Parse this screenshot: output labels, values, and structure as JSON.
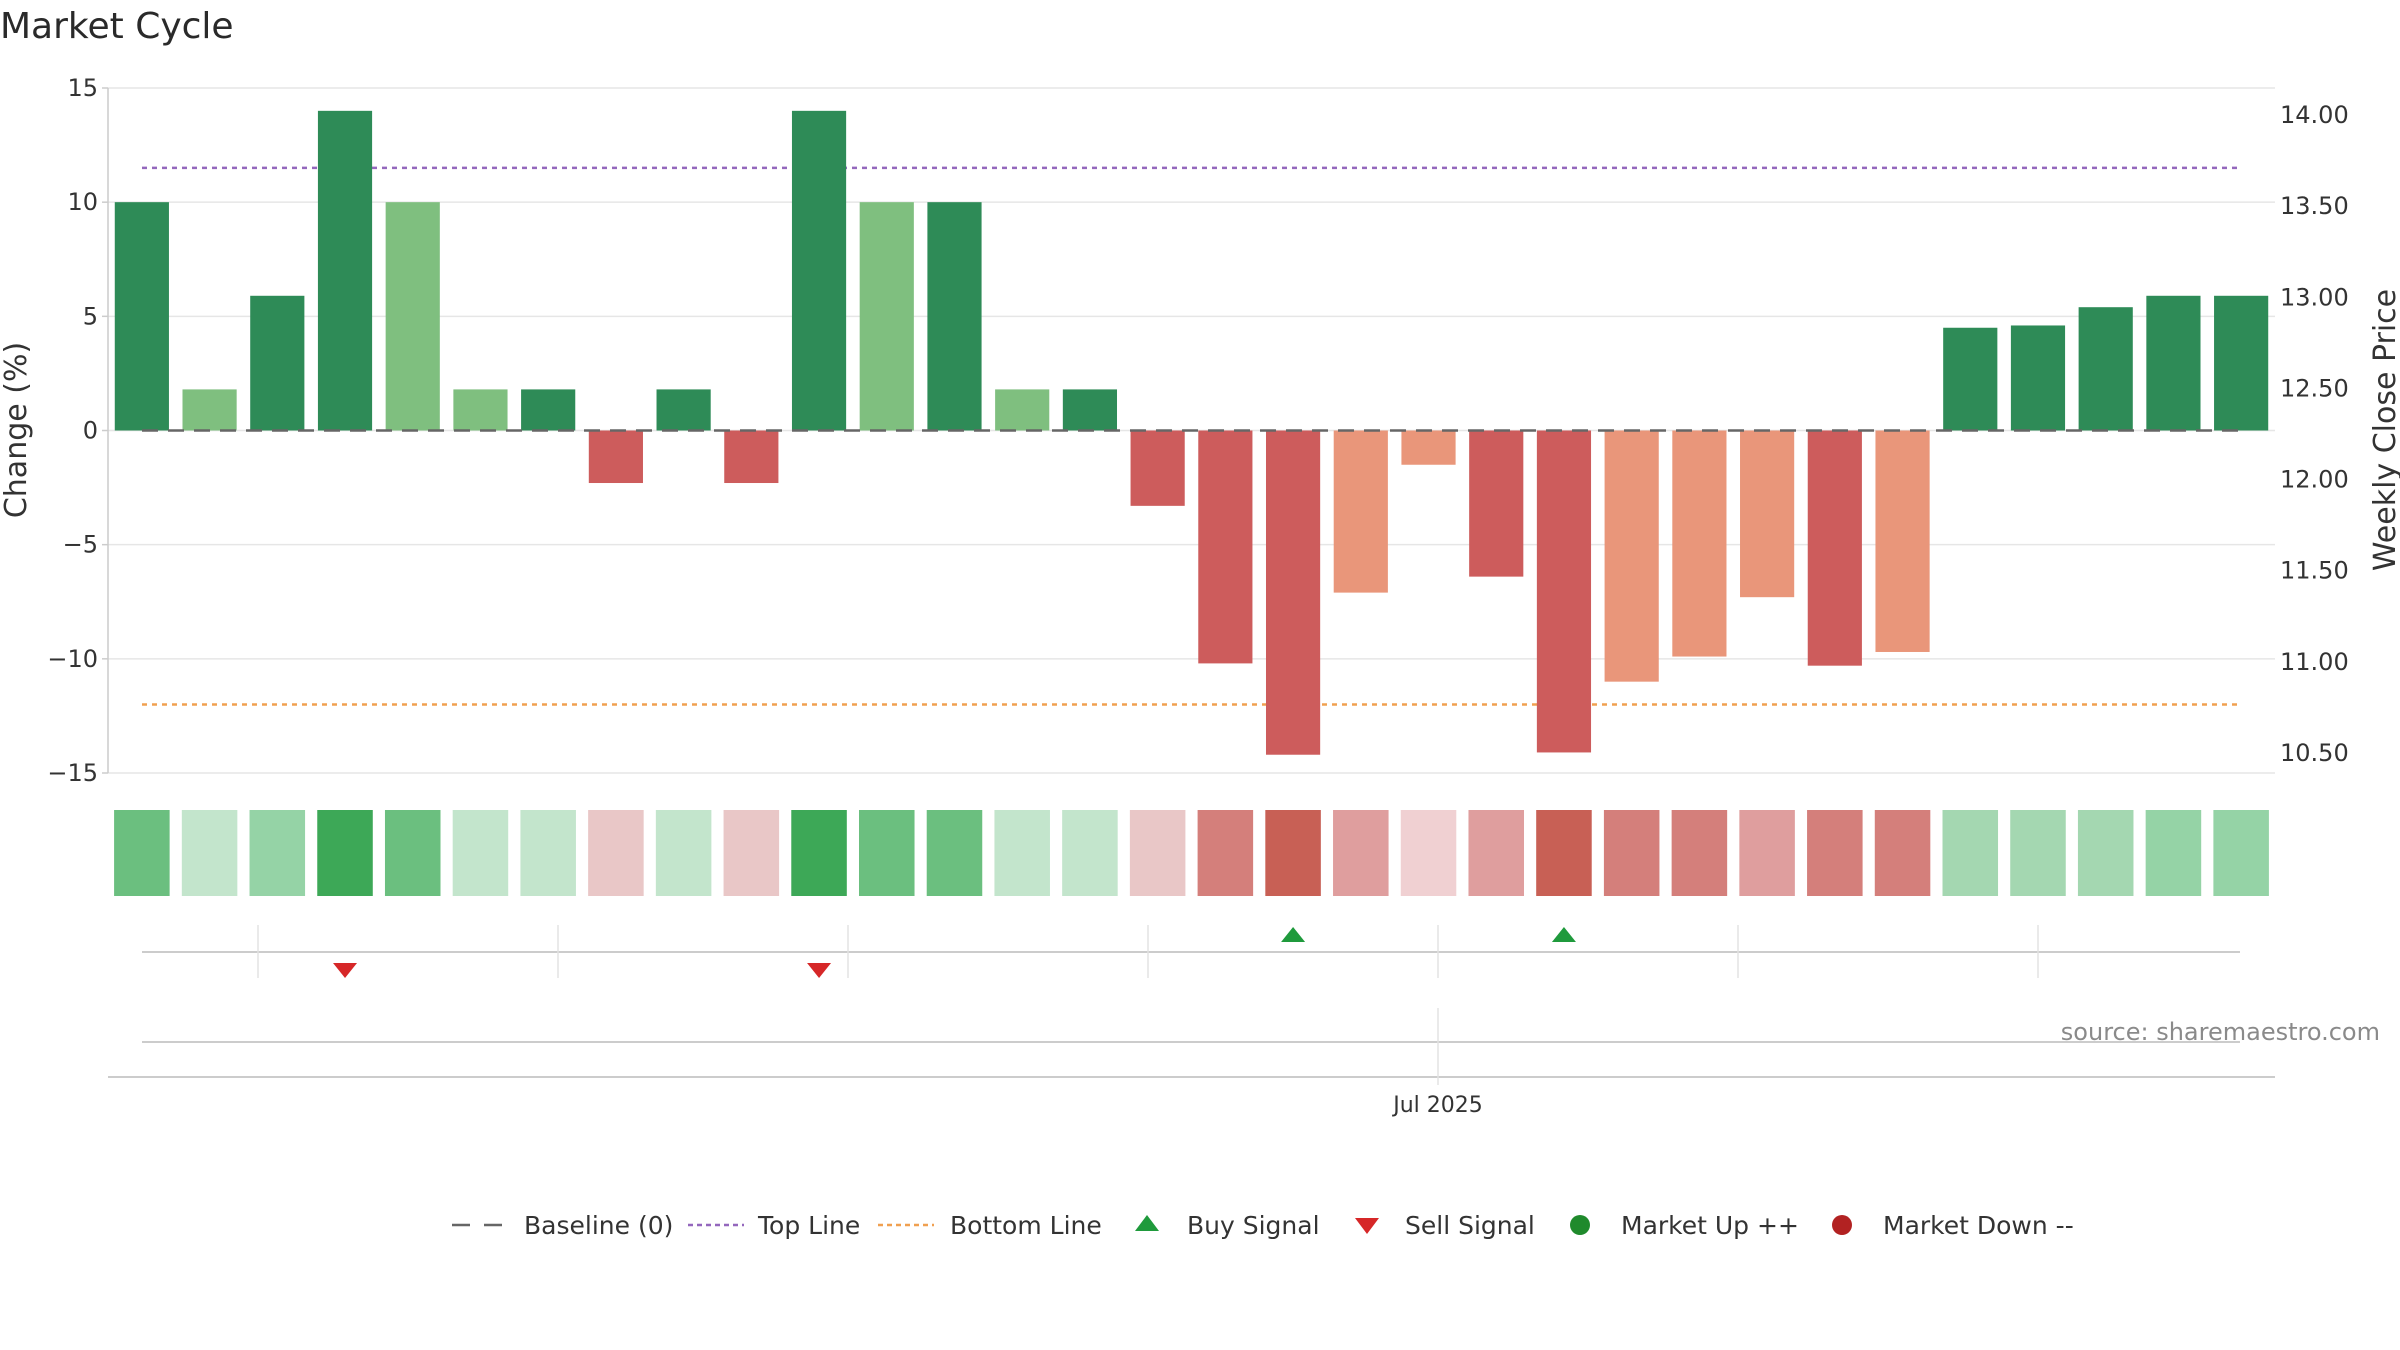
{
  "chart_data": {
    "type": "bar",
    "title": "Market Cycle",
    "ylabel": "Change (%)",
    "y2label": "Weekly Close Price",
    "ylim": [
      -15,
      15
    ],
    "y2lim": [
      10.4,
      14.1
    ],
    "yticks": [
      15,
      10,
      5,
      0,
      -5,
      -10,
      -15
    ],
    "ytick_labels": [
      "15",
      "10",
      "5",
      "0",
      "−5",
      "−10",
      "−15"
    ],
    "y2ticks": [
      14.0,
      13.5,
      13.0,
      12.5,
      12.0,
      11.5,
      11.0,
      10.5
    ],
    "y2tick_labels": [
      "14.00",
      "13.50",
      "13.00",
      "12.50",
      "12.00",
      "11.50",
      "11.00",
      "10.50"
    ],
    "grid": true,
    "baseline": 0,
    "top_line": 11.5,
    "bottom_line": -12,
    "values": [
      10,
      1.8,
      5.9,
      14,
      10,
      1.8,
      1.8,
      -2.3,
      1.8,
      -2.3,
      14,
      10,
      10,
      1.8,
      1.8,
      -3.3,
      -10.2,
      -14.2,
      -7.1,
      -1.5,
      -6.4,
      -14.1,
      -11,
      -9.9,
      -7.3,
      -10.3,
      -9.7,
      4.5,
      4.6,
      5.4,
      5.9,
      5.9
    ],
    "bar_colors": [
      "#2e8b57",
      "#7fbf7f",
      "#2e8b57",
      "#2e8b57",
      "#7fbf7f",
      "#7fbf7f",
      "#2e8b57",
      "#cd5c5c",
      "#2e8b57",
      "#cd5c5c",
      "#2e8b57",
      "#7fbf7f",
      "#2e8b57",
      "#7fbf7f",
      "#2e8b57",
      "#cd5c5c",
      "#cd5c5c",
      "#cd5c5c",
      "#e9967a",
      "#e9967a",
      "#cd5c5c",
      "#cd5c5c",
      "#e9967a",
      "#e9967a",
      "#e9967a",
      "#cd5c5c",
      "#e9967a",
      "#2e8b57",
      "#2e8b57",
      "#2e8b57",
      "#2e8b57",
      "#2e8b57"
    ],
    "strip_colors": [
      "#6bbf7f",
      "#c3e5cc",
      "#95d3a6",
      "#3da857",
      "#6bbf7f",
      "#c3e5cc",
      "#c3e5cc",
      "#e9c7c7",
      "#c3e5cc",
      "#e9c7c7",
      "#3da857",
      "#6bbf7f",
      "#6bbf7f",
      "#c3e5cc",
      "#c3e5cc",
      "#e9c7c7",
      "#d47f7b",
      "#c86055",
      "#df9e9e",
      "#f0d0d2",
      "#df9e9e",
      "#c86055",
      "#d47f7b",
      "#d47f7b",
      "#df9e9e",
      "#d47f7b",
      "#d47f7b",
      "#a4d7b1",
      "#a4d7b1",
      "#a4d7b1",
      "#95d3a6",
      "#95d3a6"
    ],
    "signals": [
      {
        "index": 3,
        "type": "sell"
      },
      {
        "index": 10,
        "type": "sell"
      },
      {
        "index": 17,
        "type": "buy"
      },
      {
        "index": 21,
        "type": "buy"
      }
    ],
    "date_labels": [
      "Jul 2025"
    ],
    "source": "source: sharemaestro.com",
    "legend": [
      {
        "label": "Baseline (0)",
        "marker": "dash",
        "color": "#666666"
      },
      {
        "label": "Top Line",
        "marker": "dot-line",
        "color": "#9467bd"
      },
      {
        "label": "Bottom Line",
        "marker": "dot-line",
        "color": "#f0a050"
      },
      {
        "label": "Buy Signal",
        "marker": "triangle-up",
        "color": "#1f9a3c"
      },
      {
        "label": "Sell Signal",
        "marker": "triangle-down",
        "color": "#d62728"
      },
      {
        "label": "Market Up ++",
        "marker": "circle",
        "color": "#1f8a2c"
      },
      {
        "label": "Market Down --",
        "marker": "circle",
        "color": "#b22222"
      }
    ],
    "colors": {
      "sell": "#d62728",
      "buy": "#1f9a3c",
      "grid": "#e6e6e6",
      "axis": "#cccccc"
    }
  }
}
